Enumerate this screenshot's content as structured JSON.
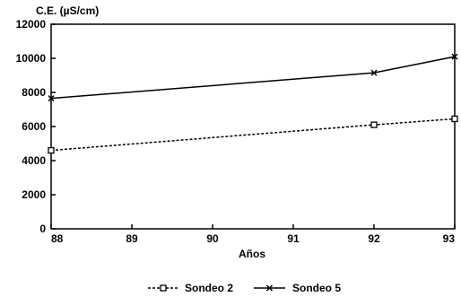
{
  "chart_data": {
    "type": "line",
    "title": "",
    "ylabel": "C.E. (µS/cm)",
    "xlabel": "Años",
    "x": [
      88,
      92,
      93
    ],
    "xlim": [
      88,
      93
    ],
    "ylim": [
      0,
      12000
    ],
    "x_ticks": [
      "88",
      "89",
      "90",
      "91",
      "92",
      "93"
    ],
    "y_ticks": [
      "0",
      "2000",
      "4000",
      "6000",
      "8000",
      "10000",
      "12000"
    ],
    "grid": false,
    "legend_position": "bottom",
    "series": [
      {
        "name": "Sondeo 2",
        "values": [
          4600,
          6100,
          6450
        ],
        "line_style": "dashed",
        "marker": "square",
        "color": "#000000"
      },
      {
        "name": "Sondeo 5",
        "values": [
          7650,
          9150,
          10100
        ],
        "line_style": "solid",
        "marker": "x",
        "color": "#000000"
      }
    ]
  }
}
